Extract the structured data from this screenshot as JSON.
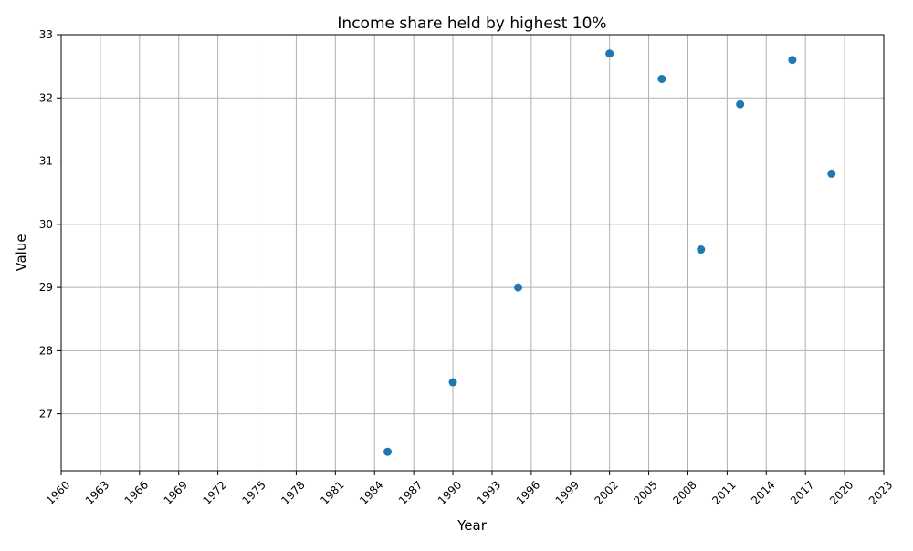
{
  "chart_data": {
    "type": "scatter",
    "title": "Income share held by highest 10%",
    "xlabel": "Year",
    "ylabel": "Value",
    "xlim": [
      1960,
      2023
    ],
    "ylim": [
      26.1,
      33
    ],
    "x_ticks": [
      1960,
      1963,
      1966,
      1969,
      1972,
      1975,
      1978,
      1981,
      1984,
      1987,
      1990,
      1993,
      1996,
      1999,
      2002,
      2005,
      2008,
      2011,
      2014,
      2017,
      2020,
      2023
    ],
    "y_ticks": [
      27,
      28,
      29,
      30,
      31,
      32,
      33
    ],
    "grid": true,
    "legend": "none",
    "marker_color": "#1f77b4",
    "grid_color": "#b0b0b0",
    "series": [
      {
        "x": [
          1985,
          1990,
          1995,
          2002,
          2006,
          2009,
          2012,
          2016,
          2019
        ],
        "y": [
          26.4,
          27.5,
          29.0,
          32.7,
          32.3,
          29.6,
          31.9,
          32.6,
          30.8
        ]
      }
    ]
  }
}
